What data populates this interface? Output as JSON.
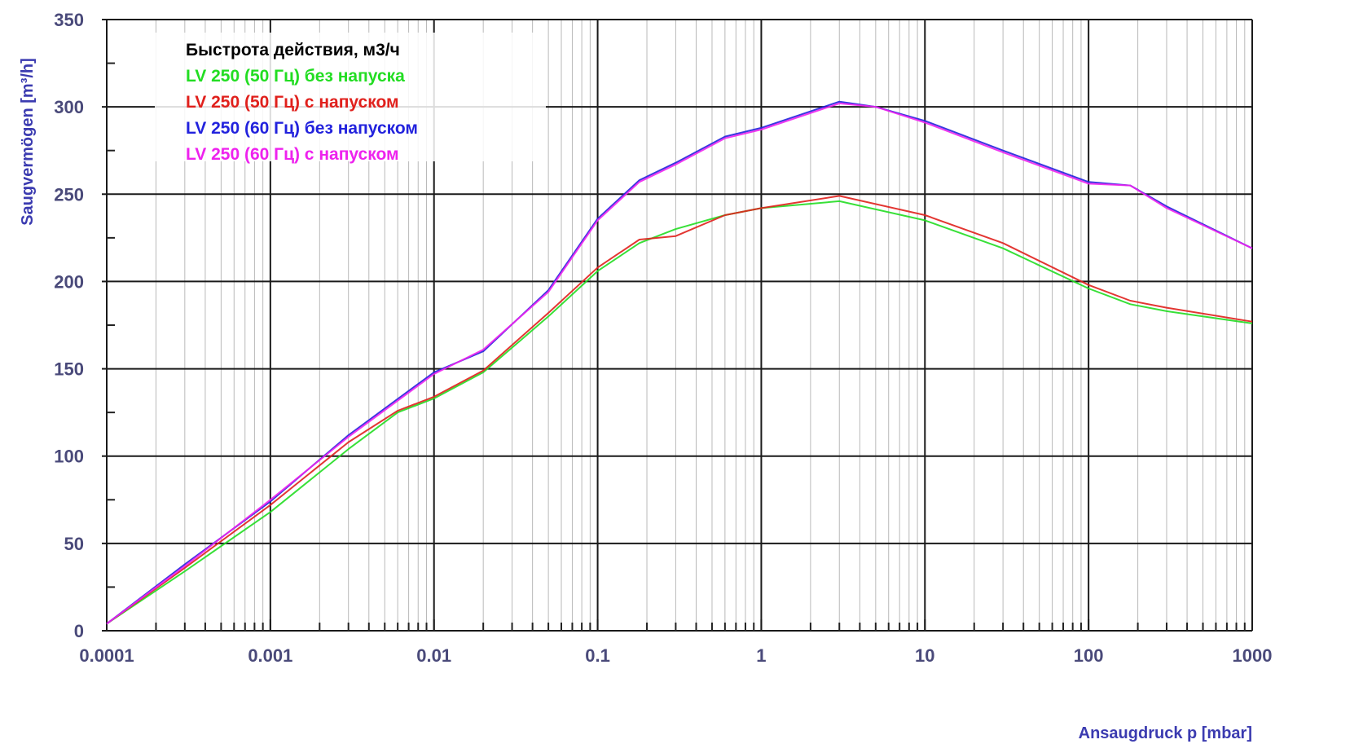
{
  "chart_data": {
    "type": "line",
    "x_scale": "log",
    "xlabel": "Ansaugdruck p [mbar]",
    "ylabel": "Saugvermögen [m³/h]",
    "xlim": [
      0.0001,
      1000
    ],
    "ylim": [
      0,
      350
    ],
    "x_ticks": [
      0.0001,
      0.001,
      0.01,
      0.1,
      1,
      10,
      100,
      1000
    ],
    "x_tick_labels": [
      "0.0001",
      "0.001",
      "0.01",
      "0.1",
      "1",
      "10",
      "100",
      "1000"
    ],
    "y_ticks": [
      0,
      50,
      100,
      150,
      200,
      250,
      300,
      350
    ],
    "y_tick_labels": [
      "0",
      "50",
      "100",
      "150",
      "200",
      "250",
      "300",
      "350"
    ],
    "grid": true,
    "legend_title": "Быстрота действия, м3/ч",
    "legend_position": "top-left",
    "series": [
      {
        "name": "LV 250 (50 Гц) без напуска",
        "color": "#22dd22",
        "x": [
          0.0001,
          0.0003,
          0.001,
          0.003,
          0.006,
          0.01,
          0.02,
          0.05,
          0.1,
          0.18,
          0.3,
          0.6,
          1,
          3,
          10,
          30,
          100,
          180,
          300,
          1000
        ],
        "y": [
          4,
          34,
          68,
          104,
          125,
          133,
          148,
          180,
          206,
          222,
          230,
          238,
          242,
          246,
          235,
          219,
          196,
          187,
          183,
          176
        ]
      },
      {
        "name": "LV 250 (50 Гц) с напуском",
        "color": "#e0201c",
        "x": [
          0.0001,
          0.0003,
          0.001,
          0.003,
          0.006,
          0.01,
          0.02,
          0.05,
          0.1,
          0.18,
          0.3,
          0.6,
          1,
          3,
          10,
          30,
          100,
          180,
          300,
          1000
        ],
        "y": [
          4,
          36,
          72,
          108,
          126,
          134,
          149,
          182,
          208,
          224,
          226,
          238,
          242,
          249,
          238,
          222,
          198,
          189,
          185,
          177
        ]
      },
      {
        "name": "LV 250 (60 Гц) без напуском",
        "color": "#2222dd",
        "x": [
          0.0001,
          0.0003,
          0.001,
          0.003,
          0.01,
          0.02,
          0.05,
          0.1,
          0.18,
          0.3,
          0.6,
          1,
          3,
          5,
          10,
          30,
          100,
          180,
          300,
          1000
        ],
        "y": [
          4,
          38,
          74,
          112,
          148,
          160,
          195,
          236,
          258,
          268,
          283,
          288,
          303,
          300,
          292,
          275,
          257,
          255,
          243,
          219
        ]
      },
      {
        "name": "LV 250 (60 Гц) с напуском",
        "color": "#ee22ee",
        "x": [
          0.0001,
          0.0003,
          0.001,
          0.003,
          0.01,
          0.02,
          0.05,
          0.1,
          0.18,
          0.3,
          0.6,
          1,
          3,
          5,
          10,
          30,
          100,
          180,
          300,
          1000
        ],
        "y": [
          4,
          37,
          75,
          111,
          147,
          161,
          194,
          235,
          257,
          267,
          282,
          287,
          302,
          300,
          291,
          274,
          256,
          255,
          242,
          219
        ]
      }
    ]
  }
}
